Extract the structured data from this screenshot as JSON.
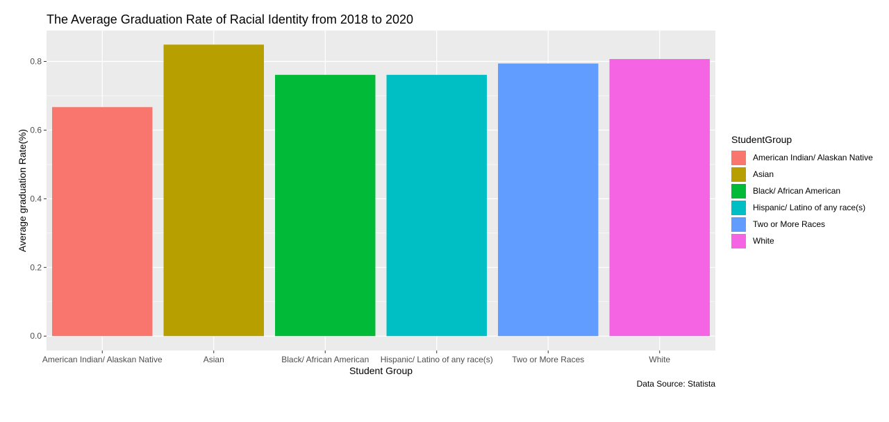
{
  "chart_data": {
    "type": "bar",
    "title": "The Average Graduation Rate of Racial Identity from 2018 to 2020",
    "xlabel": "Student Group",
    "ylabel": "Average graduation Rate(%)",
    "caption": "Data Source: Statista",
    "categories": [
      "American Indian/ Alaskan Native",
      "Asian",
      "Black/ African American",
      "Hispanic/ Latino of any race(s)",
      "Two or More Races",
      "White"
    ],
    "values": [
      0.667,
      0.849,
      0.761,
      0.761,
      0.794,
      0.807
    ],
    "colors": [
      "#F8766D",
      "#B79F00",
      "#00BA38",
      "#00BFC4",
      "#619CFF",
      "#F564E3"
    ],
    "yticks": [
      "0.0",
      "0.2",
      "0.4",
      "0.6",
      "0.8"
    ],
    "ylim": [
      -0.042,
      0.89
    ],
    "legend": {
      "title": "StudentGroup",
      "position": "right"
    },
    "grid": true,
    "panel_background": "#EBEBEB"
  }
}
